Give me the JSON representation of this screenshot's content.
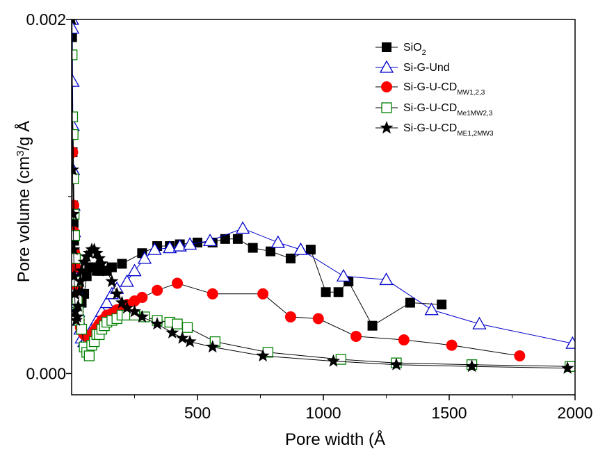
{
  "chart_data": {
    "type": "scatter",
    "xlabel": "Pore width (Å",
    "ylabel_parts": [
      "Pore volume (cm",
      "3",
      "/g Å"
    ],
    "xlim": [
      0,
      2000
    ],
    "ylim": [
      -0.00012,
      0.002
    ],
    "xticks": [
      500,
      1000,
      1500,
      2000
    ],
    "xtick_labels": [
      "500",
      "1000",
      "1500",
      "2000"
    ],
    "yticks": [
      0.0,
      0.002
    ],
    "ytick_labels": [
      "0.000",
      "0.002"
    ],
    "grid": false,
    "legend_position": "top-right",
    "series": [
      {
        "name": "SiO2",
        "legend_parts": [
          "SiO",
          "2"
        ],
        "marker": "square-filled",
        "color": "#000000",
        "x": [
          2,
          4,
          6,
          8,
          10,
          12,
          15,
          18,
          22,
          26,
          30,
          35,
          40,
          50,
          60,
          70,
          80,
          90,
          100,
          110,
          120,
          140,
          160,
          200,
          280,
          340,
          390,
          430,
          500,
          560,
          610,
          660,
          720,
          790,
          870,
          950,
          1010,
          1060,
          1100,
          1195,
          1345,
          1470
        ],
        "y": [
          0.0019,
          0.00125,
          0.00095,
          0.00085,
          0.00075,
          0.00068,
          0.0006,
          0.00055,
          0.0005,
          0.00047,
          0.00045,
          0.00043,
          0.0004,
          0.00045,
          0.00055,
          0.0006,
          0.0006,
          0.0006,
          0.00058,
          0.00058,
          0.00058,
          0.00058,
          0.0006,
          0.00062,
          0.00068,
          0.00072,
          0.00072,
          0.00073,
          0.00074,
          0.00074,
          0.00076,
          0.00076,
          0.00071,
          0.00069,
          0.00065,
          0.0007,
          0.00046,
          0.00046,
          0.00052,
          0.00027,
          0.0004,
          0.00039
        ]
      },
      {
        "name": "Si-G-Und",
        "marker": "triangle-open",
        "color": "#0000cc",
        "x": [
          2,
          3,
          4,
          5,
          6,
          8,
          10,
          12,
          15,
          18,
          22,
          26,
          30,
          35,
          40,
          50,
          60,
          80,
          100,
          120,
          140,
          160,
          180,
          220,
          250,
          290,
          330,
          390,
          430,
          470,
          550,
          680,
          820,
          910,
          1080,
          1250,
          1430,
          1620,
          1990
        ],
        "y": [
          0.002,
          0.00195,
          0.00165,
          0.0014,
          0.00115,
          0.00095,
          0.0008,
          0.00065,
          0.00055,
          0.00048,
          0.0004,
          0.00035,
          0.0003,
          0.00025,
          0.0002,
          0.00018,
          0.0002,
          0.00025,
          0.0003,
          0.00035,
          0.0004,
          0.00045,
          0.00048,
          0.00052,
          0.00058,
          0.00065,
          0.0007,
          0.00071,
          0.00072,
          0.00073,
          0.00075,
          0.00082,
          0.00074,
          0.0007,
          0.00055,
          0.00053,
          0.00036,
          0.00028,
          0.00017
        ]
      },
      {
        "name": "Si-G-U-CDMW1,2,3",
        "legend_parts": [
          "Si-G-U-CD",
          "MW1,2,3"
        ],
        "marker": "circle-filled",
        "color": "#ff0000",
        "x": [
          2,
          4,
          6,
          8,
          10,
          12,
          15,
          18,
          22,
          26,
          30,
          35,
          40,
          50,
          60,
          70,
          80,
          90,
          100,
          110,
          120,
          130,
          140,
          160,
          180,
          200,
          220,
          250,
          280,
          340,
          420,
          560,
          760,
          870,
          980,
          1130,
          1320,
          1510,
          1780
        ],
        "y": [
          0.00135,
          0.00125,
          0.0011,
          0.00095,
          0.0008,
          0.00068,
          0.0006,
          0.0005,
          0.00042,
          0.00035,
          0.0003,
          0.00026,
          0.00024,
          0.00022,
          0.00021,
          0.00021,
          0.00022,
          0.00024,
          0.00026,
          0.00028,
          0.0003,
          0.00031,
          0.00033,
          0.00034,
          0.00036,
          0.00037,
          0.00039,
          0.00041,
          0.00043,
          0.00047,
          0.00051,
          0.00045,
          0.00045,
          0.00032,
          0.00031,
          0.00021,
          0.00019,
          0.00016,
          0.0001
        ]
      },
      {
        "name": "Si-G-U-CDMe1MW2,3",
        "legend_parts": [
          "Si-G-U-CD",
          "Me1MW2,3"
        ],
        "marker": "square-open",
        "color": "#008000",
        "x": [
          2,
          4,
          6,
          8,
          10,
          12,
          15,
          18,
          22,
          26,
          30,
          40,
          50,
          60,
          70,
          80,
          90,
          100,
          110,
          120,
          130,
          140,
          160,
          180,
          200,
          220,
          250,
          290,
          340,
          390,
          420,
          460,
          570,
          780,
          1070,
          1290,
          1590,
          1980
        ],
        "y": [
          0.0018,
          0.00145,
          0.00135,
          0.0011,
          0.0009,
          0.00078,
          0.00065,
          0.00052,
          0.00042,
          0.00035,
          0.0003,
          0.00025,
          0.00015,
          0.00012,
          0.0001,
          0.00016,
          0.00018,
          0.00022,
          0.00022,
          0.00025,
          0.00027,
          0.00029,
          0.0003,
          0.00031,
          0.00033,
          0.00033,
          0.00033,
          0.00032,
          0.0003,
          0.00029,
          0.00028,
          0.00026,
          0.00018,
          0.00012,
          8e-05,
          6e-05,
          5e-05,
          4e-05
        ]
      },
      {
        "name": "Si-G-U-CDME1,2MW3",
        "legend_parts": [
          "Si-G-U-CD",
          "ME1,2MW3"
        ],
        "marker": "star-filled",
        "color": "#000000",
        "x": [
          2,
          4,
          6,
          8,
          10,
          12,
          15,
          18,
          22,
          26,
          30,
          35,
          40,
          50,
          60,
          70,
          80,
          90,
          100,
          110,
          120,
          140,
          160,
          180,
          200,
          220,
          250,
          280,
          340,
          400,
          440,
          470,
          560,
          760,
          1040,
          1290,
          1590,
          1970
        ],
        "y": [
          0.002,
          0.00115,
          0.0009,
          0.0007,
          0.00055,
          0.00045,
          0.00035,
          0.0003,
          0.00032,
          0.00038,
          0.00046,
          0.00052,
          0.00058,
          0.00063,
          0.00066,
          0.00068,
          0.0007,
          0.0007,
          0.00068,
          0.00065,
          0.00062,
          0.00058,
          0.00052,
          0.00045,
          0.0004,
          0.00037,
          0.00035,
          0.00032,
          0.00028,
          0.00023,
          0.0002,
          0.00018,
          0.00015,
          0.0001,
          7e-05,
          5e-05,
          4e-05,
          3e-05
        ]
      }
    ]
  }
}
